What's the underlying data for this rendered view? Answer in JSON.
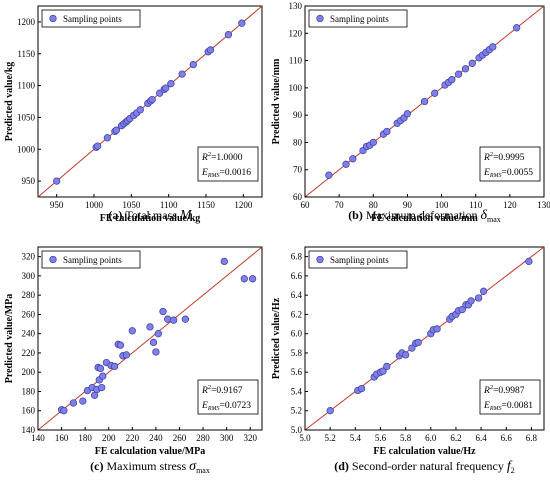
{
  "colors": {
    "fit_line": "#c0392b",
    "point_fill": "#7f7fe6",
    "point_stroke": "#3b3ba8",
    "frame": "#000000"
  },
  "chart_data": [
    {
      "type": "scatter",
      "panel": "(a)",
      "caption_text": "Total mass",
      "caption_symbol": "M",
      "caption_subscript": "",
      "xlabel": "FE calculation value/kg",
      "ylabel": "Predicted value/kg",
      "xlim": [
        925,
        1225
      ],
      "ylim": [
        925,
        1225
      ],
      "xticks": [
        950,
        1000,
        1050,
        1100,
        1150,
        1200
      ],
      "yticks": [
        950,
        1000,
        1050,
        1100,
        1150,
        1200
      ],
      "legend": "Sampling points",
      "legend_position": "top-left",
      "grid": false,
      "metric_r2": "1.0000",
      "metric_rms": "0.0016",
      "points": [
        [
          950,
          950
        ],
        [
          1003,
          1003
        ],
        [
          1005,
          1005
        ],
        [
          1018,
          1018
        ],
        [
          1028,
          1028
        ],
        [
          1030,
          1030
        ],
        [
          1037,
          1037
        ],
        [
          1040,
          1040
        ],
        [
          1043,
          1043
        ],
        [
          1045,
          1045
        ],
        [
          1048,
          1048
        ],
        [
          1053,
          1053
        ],
        [
          1057,
          1057
        ],
        [
          1062,
          1062
        ],
        [
          1072,
          1072
        ],
        [
          1076,
          1076
        ],
        [
          1078,
          1078
        ],
        [
          1088,
          1088
        ],
        [
          1094,
          1094
        ],
        [
          1096,
          1096
        ],
        [
          1103,
          1103
        ],
        [
          1118,
          1118
        ],
        [
          1133,
          1133
        ],
        [
          1153,
          1153
        ],
        [
          1156,
          1156
        ],
        [
          1180,
          1180
        ],
        [
          1198,
          1198
        ]
      ]
    },
    {
      "type": "scatter",
      "panel": "(b)",
      "caption_text": "Maximum deformation",
      "caption_symbol": "δ",
      "caption_subscript": "max",
      "xlabel": "FE calculation value/mm",
      "ylabel": "Predicted value/mm",
      "xlim": [
        60,
        130
      ],
      "ylim": [
        60,
        130
      ],
      "xticks": [
        60,
        70,
        80,
        90,
        100,
        110,
        120,
        130
      ],
      "yticks": [
        60,
        70,
        80,
        90,
        100,
        110,
        120,
        130
      ],
      "legend": "Sampling points",
      "legend_position": "top-left",
      "grid": false,
      "metric_r2": "0.9995",
      "metric_rms": "0.0055",
      "points": [
        [
          67,
          68
        ],
        [
          72,
          72
        ],
        [
          74,
          74
        ],
        [
          77,
          77
        ],
        [
          78,
          78.5
        ],
        [
          79,
          79
        ],
        [
          80,
          80
        ],
        [
          83,
          83
        ],
        [
          84,
          84
        ],
        [
          87,
          87
        ],
        [
          88,
          88
        ],
        [
          89,
          89
        ],
        [
          90,
          90.5
        ],
        [
          95,
          95
        ],
        [
          98,
          98
        ],
        [
          101,
          101
        ],
        [
          102,
          102
        ],
        [
          103,
          103
        ],
        [
          105,
          105
        ],
        [
          107,
          107
        ],
        [
          109,
          109
        ],
        [
          111,
          111
        ],
        [
          112,
          112
        ],
        [
          113,
          113
        ],
        [
          114,
          114
        ],
        [
          115,
          115
        ],
        [
          122,
          122
        ]
      ]
    },
    {
      "type": "scatter",
      "panel": "(c)",
      "caption_text": "Maximum stress",
      "caption_symbol": "σ",
      "caption_subscript": "max",
      "xlabel": "FE calculation value/MPa",
      "ylabel": "Predicted value/MPa",
      "xlim": [
        140,
        330
      ],
      "ylim": [
        140,
        330
      ],
      "xticks": [
        140,
        160,
        180,
        200,
        220,
        240,
        260,
        280,
        300,
        320
      ],
      "yticks": [
        140,
        160,
        180,
        200,
        220,
        240,
        260,
        280,
        300,
        320
      ],
      "legend": "Sampling points",
      "legend_position": "top-left",
      "grid": false,
      "metric_r2": "0.9167",
      "metric_rms": "0.0723",
      "points": [
        [
          160,
          161
        ],
        [
          162,
          160
        ],
        [
          170,
          168
        ],
        [
          178,
          170
        ],
        [
          182,
          181
        ],
        [
          186,
          184
        ],
        [
          188,
          176
        ],
        [
          190,
          182
        ],
        [
          191,
          205
        ],
        [
          192,
          192
        ],
        [
          194,
          184
        ],
        [
          193,
          204
        ],
        [
          195,
          196
        ],
        [
          198,
          210
        ],
        [
          202,
          207
        ],
        [
          205,
          206
        ],
        [
          208,
          229
        ],
        [
          210,
          228
        ],
        [
          212,
          217
        ],
        [
          215,
          218
        ],
        [
          220,
          243
        ],
        [
          235,
          247
        ],
        [
          238,
          231
        ],
        [
          240,
          221
        ],
        [
          242,
          240
        ],
        [
          246,
          263
        ],
        [
          250,
          255
        ],
        [
          255,
          254
        ],
        [
          265,
          255
        ],
        [
          298,
          315
        ],
        [
          315,
          297
        ],
        [
          322,
          297
        ]
      ]
    },
    {
      "type": "scatter",
      "panel": "(d)",
      "caption_text": "Second-order natural frequency",
      "caption_symbol": "f",
      "caption_subscript": "2",
      "xlabel": "FE calculation value/Hz",
      "ylabel": "Predicted value/Hz",
      "xlim": [
        5.0,
        6.9
      ],
      "ylim": [
        5.0,
        6.9
      ],
      "xticks": [
        "5.0",
        "5.2",
        "5.4",
        "5.6",
        "5.8",
        "6.0",
        "6.2",
        "6.4",
        "6.6",
        "6.8"
      ],
      "yticks": [
        "5.0",
        "5.2",
        "5.4",
        "5.6",
        "5.8",
        "6.0",
        "6.2",
        "6.4",
        "6.6",
        "6.8"
      ],
      "legend": "Sampling points",
      "legend_position": "top-left",
      "grid": false,
      "metric_r2": "0.9987",
      "metric_rms": "0.0081",
      "points": [
        [
          5.2,
          5.2
        ],
        [
          5.42,
          5.41
        ],
        [
          5.45,
          5.43
        ],
        [
          5.55,
          5.55
        ],
        [
          5.57,
          5.58
        ],
        [
          5.6,
          5.6
        ],
        [
          5.62,
          5.61
        ],
        [
          5.65,
          5.66
        ],
        [
          5.75,
          5.77
        ],
        [
          5.77,
          5.8
        ],
        [
          5.8,
          5.78
        ],
        [
          5.85,
          5.85
        ],
        [
          5.88,
          5.9
        ],
        [
          5.9,
          5.91
        ],
        [
          6.0,
          6.0
        ],
        [
          6.02,
          6.04
        ],
        [
          6.05,
          6.05
        ],
        [
          6.15,
          6.15
        ],
        [
          6.17,
          6.18
        ],
        [
          6.2,
          6.2
        ],
        [
          6.22,
          6.24
        ],
        [
          6.25,
          6.25
        ],
        [
          6.28,
          6.3
        ],
        [
          6.3,
          6.3
        ],
        [
          6.32,
          6.34
        ],
        [
          6.38,
          6.37
        ],
        [
          6.42,
          6.44
        ],
        [
          6.78,
          6.75
        ]
      ]
    }
  ]
}
